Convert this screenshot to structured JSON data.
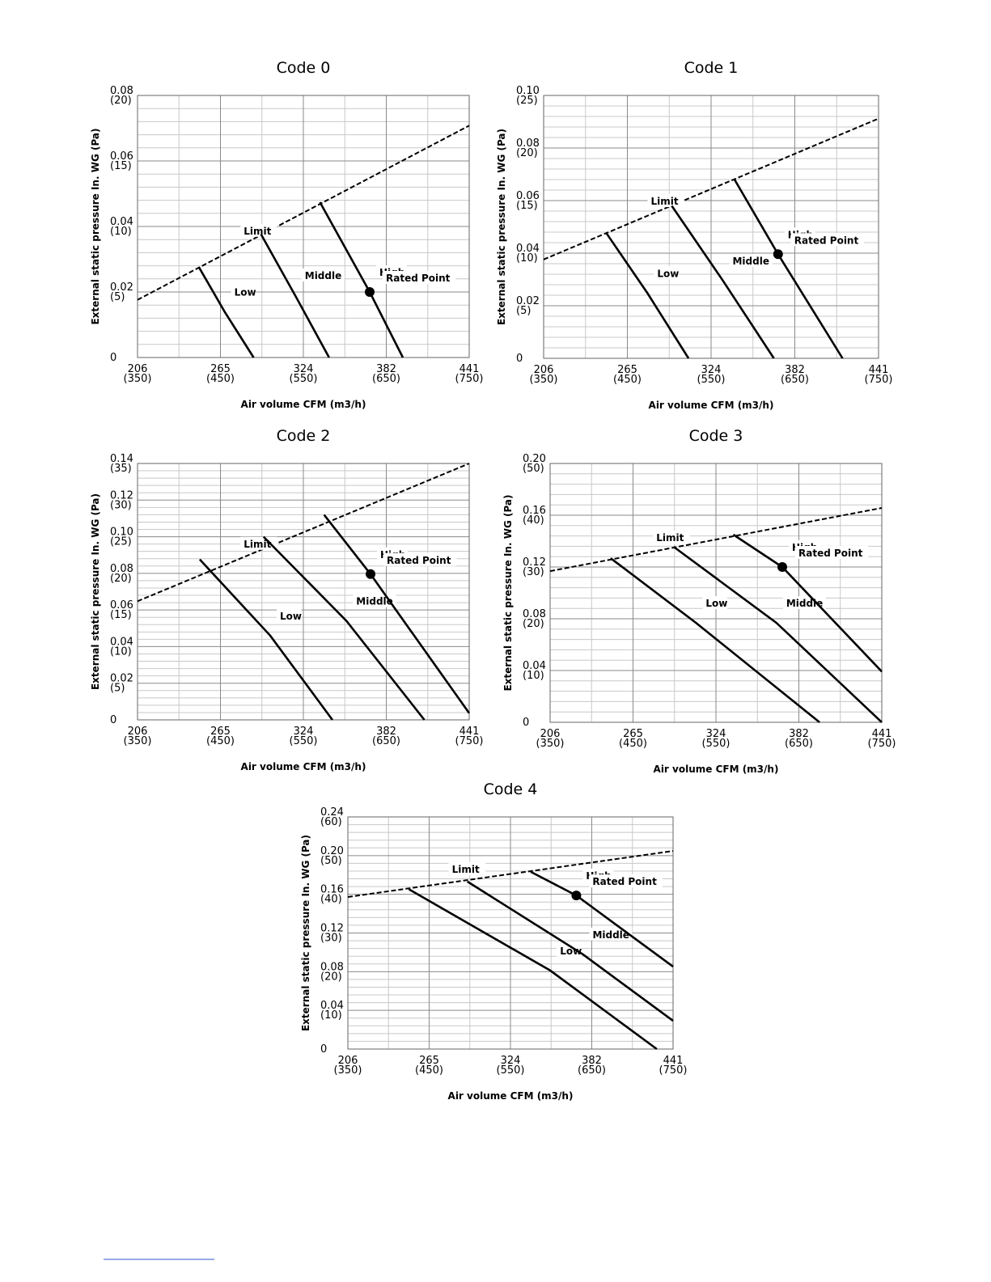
{
  "chart_data": [
    {
      "type": "line",
      "title": "Code 0",
      "xlabel": "Air volume CFM (m3/h)",
      "ylabel": "External static pressure In. WG (Pa)",
      "xlim": [
        350,
        750
      ],
      "ylim": [
        0,
        20
      ],
      "grid": true,
      "xticks": [
        {
          "value": 350,
          "label": "206 (350)"
        },
        {
          "value": 450,
          "label": "265 (450)"
        },
        {
          "value": 550,
          "label": "324 (550)"
        },
        {
          "value": 650,
          "label": "382 (650)"
        },
        {
          "value": 750,
          "label": "441 (750)"
        }
      ],
      "yticks": [
        0,
        {
          "value": 5,
          "label": "0.02 (5)"
        },
        {
          "value": 10,
          "label": "0.04 (10)"
        },
        {
          "value": 15,
          "label": "0.06 (15)"
        },
        {
          "value": 20,
          "label": "0.08 (20)"
        }
      ],
      "series": [
        {
          "name": "Limit",
          "color": "#000000",
          "dashed": true,
          "x": [
            350,
            750
          ],
          "values": [
            4.4,
            17.7
          ]
        },
        {
          "name": "Low",
          "color": "#000000",
          "x": [
            424,
            455,
            490
          ],
          "values": [
            6.9,
            3.5,
            0
          ]
        },
        {
          "name": "Middle",
          "color": "#000000",
          "x": [
            499,
            540,
            581
          ],
          "values": [
            9.4,
            4.75,
            0
          ]
        },
        {
          "name": "High",
          "color": "#000000",
          "x": [
            570,
            630,
            670
          ],
          "values": [
            11.85,
            5.0,
            0
          ]
        }
      ],
      "points": {
        "name": "Rated Point",
        "color": "#000000",
        "x": [
          630
        ],
        "values": [
          5.0
        ]
      }
    },
    {
      "type": "line",
      "title": "Code 1",
      "xlabel": "Air volume CFM (m3/h)",
      "ylabel": "External static pressure In. WG (Pa)",
      "xlim": [
        350,
        750
      ],
      "ylim": [
        0,
        25
      ],
      "grid": true,
      "xticks": [
        {
          "value": 350,
          "label": "206 (350)"
        },
        {
          "value": 450,
          "label": "265 (450)"
        },
        {
          "value": 550,
          "label": "324 (550)"
        },
        {
          "value": 650,
          "label": "382 (650)"
        },
        {
          "value": 750,
          "label": "441 (750)"
        }
      ],
      "yticks": [
        0,
        {
          "value": 5,
          "label": "0.02 (5)"
        },
        {
          "value": 10,
          "label": "0.04 (10)"
        },
        {
          "value": 15,
          "label": "0.06 (15)"
        },
        {
          "value": 20,
          "label": "0.08 (20)"
        },
        {
          "value": 25,
          "label": "0.10 (25)"
        }
      ],
      "series": [
        {
          "name": "Limit",
          "color": "#000000",
          "dashed": true,
          "x": [
            350,
            750
          ],
          "values": [
            9.4,
            22.8
          ]
        },
        {
          "name": "Low",
          "color": "#000000",
          "x": [
            425,
            474,
            523
          ],
          "values": [
            11.9,
            6.2,
            0
          ]
        },
        {
          "name": "Middle",
          "color": "#000000",
          "x": [
            503,
            564,
            625
          ],
          "values": [
            14.5,
            7.4,
            0
          ]
        },
        {
          "name": "High",
          "color": "#000000",
          "x": [
            578,
            630,
            707
          ],
          "values": [
            17,
            9.9,
            0
          ]
        }
      ],
      "points": {
        "name": "Rated Point",
        "color": "#000000",
        "x": [
          630
        ],
        "values": [
          9.9
        ]
      }
    },
    {
      "type": "line",
      "title": "Code 2",
      "xlabel": "Air volume CFM (m3/h)",
      "ylabel": "External static pressure In. WG (Pa)",
      "xlim": [
        350,
        750
      ],
      "ylim": [
        0,
        35
      ],
      "grid": true,
      "xticks": [
        {
          "value": 350,
          "label": "206 (350)"
        },
        {
          "value": 450,
          "label": "265 (450)"
        },
        {
          "value": 550,
          "label": "324 (550)"
        },
        {
          "value": 650,
          "label": "382 (650)"
        },
        {
          "value": 750,
          "label": "441 (750)"
        }
      ],
      "yticks": [
        0,
        {
          "value": 5,
          "label": "0.02 (5)"
        },
        {
          "value": 10,
          "label": "0.04 (10)"
        },
        {
          "value": 15,
          "label": "0.06 (15)"
        },
        {
          "value": 20,
          "label": "0.08 (20)"
        },
        {
          "value": 25,
          "label": "0.10 (25)"
        },
        {
          "value": 30,
          "label": "0.12 (30)"
        },
        {
          "value": 35,
          "label": "0.14 (35)"
        }
      ],
      "series": [
        {
          "name": "Limit",
          "color": "#000000",
          "dashed": true,
          "x": [
            350,
            750
          ],
          "values": [
            16.2,
            35
          ]
        },
        {
          "name": "Low",
          "color": "#000000",
          "x": [
            425,
            510,
            585
          ],
          "values": [
            21.9,
            11.5,
            0
          ]
        },
        {
          "name": "Middle",
          "color": "#000000",
          "x": [
            502,
            602,
            696
          ],
          "values": [
            25,
            13.5,
            0
          ]
        },
        {
          "name": "High",
          "color": "#000000",
          "x": [
            575,
            631,
            750
          ],
          "values": [
            28,
            19.9,
            0.9
          ]
        }
      ],
      "points": {
        "name": "Rated Point",
        "color": "#000000",
        "x": [
          631
        ],
        "values": [
          19.9
        ]
      }
    },
    {
      "type": "line",
      "title": "Code 3",
      "xlabel": "Air volume CFM (m3/h)",
      "ylabel": "External static pressure In. WG (Pa)",
      "xlim": [
        350,
        750
      ],
      "ylim": [
        0,
        50
      ],
      "grid": true,
      "xticks": [
        {
          "value": 350,
          "label": "206 (350)"
        },
        {
          "value": 450,
          "label": "265 (450)"
        },
        {
          "value": 550,
          "label": "324 (550)"
        },
        {
          "value": 650,
          "label": "382 (650)"
        },
        {
          "value": 750,
          "label": "441 (750)"
        }
      ],
      "yticks": [
        0,
        {
          "value": 10,
          "label": "0.04 (10)"
        },
        {
          "value": 20,
          "label": "0.08 (20)"
        },
        {
          "value": 30,
          "label": "0.12 (30)"
        },
        {
          "value": 40,
          "label": "0.16 (40)"
        },
        {
          "value": 50,
          "label": "0.20 (50)"
        }
      ],
      "series": [
        {
          "name": "Limit",
          "color": "#000000",
          "dashed": true,
          "x": [
            350,
            750
          ],
          "values": [
            29.2,
            41.4
          ]
        },
        {
          "name": "Low",
          "color": "#000000",
          "x": [
            423,
            526,
            675
          ],
          "values": [
            31.7,
            19.2,
            0
          ]
        },
        {
          "name": "Middle",
          "color": "#000000",
          "x": [
            499,
            623,
            750
          ],
          "values": [
            33.9,
            19.2,
            0
          ]
        },
        {
          "name": "High",
          "color": "#000000",
          "x": [
            571,
            630,
            750
          ],
          "values": [
            36.25,
            30,
            9.8
          ]
        }
      ],
      "points": {
        "name": "Rated Point",
        "color": "#000000",
        "x": [
          630
        ],
        "values": [
          30
        ]
      }
    },
    {
      "type": "line",
      "title": "Code 4",
      "xlabel": "Air volume CFM (m3/h)",
      "ylabel": "External static pressure In. WG (Pa)",
      "xlim": [
        350,
        750
      ],
      "ylim": [
        0,
        60
      ],
      "grid": true,
      "xticks": [
        {
          "value": 350,
          "label": "206 (350)"
        },
        {
          "value": 450,
          "label": "265 (450)"
        },
        {
          "value": 550,
          "label": "324 (550)"
        },
        {
          "value": 650,
          "label": "382 (650)"
        },
        {
          "value": 750,
          "label": "441 (750)"
        }
      ],
      "yticks": [
        0,
        {
          "value": 10,
          "label": "0.04 (10)"
        },
        {
          "value": 20,
          "label": "0.08 (20)"
        },
        {
          "value": 30,
          "label": "0.12 (30)"
        },
        {
          "value": 40,
          "label": "0.16 (40)"
        },
        {
          "value": 50,
          "label": "0.20 (50)"
        },
        {
          "value": 60,
          "label": "0.24 (60)"
        }
      ],
      "series": [
        {
          "name": "Limit",
          "color": "#000000",
          "dashed": true,
          "x": [
            350,
            750
          ],
          "values": [
            39.3,
            51.2
          ]
        },
        {
          "name": "Low",
          "color": "#000000",
          "x": [
            425,
            599,
            730
          ],
          "values": [
            41.3,
            20.3,
            0
          ]
        },
        {
          "name": "Middle",
          "color": "#000000",
          "x": [
            497,
            639,
            750
          ],
          "values": [
            43.3,
            24.5,
            7.3
          ]
        },
        {
          "name": "High",
          "color": "#000000",
          "x": [
            575,
            631,
            750
          ],
          "values": [
            45.8,
            39.7,
            21.3
          ]
        }
      ],
      "points": {
        "name": "Rated Point",
        "color": "#000000",
        "x": [
          631
        ],
        "values": [
          39.7
        ]
      }
    }
  ]
}
